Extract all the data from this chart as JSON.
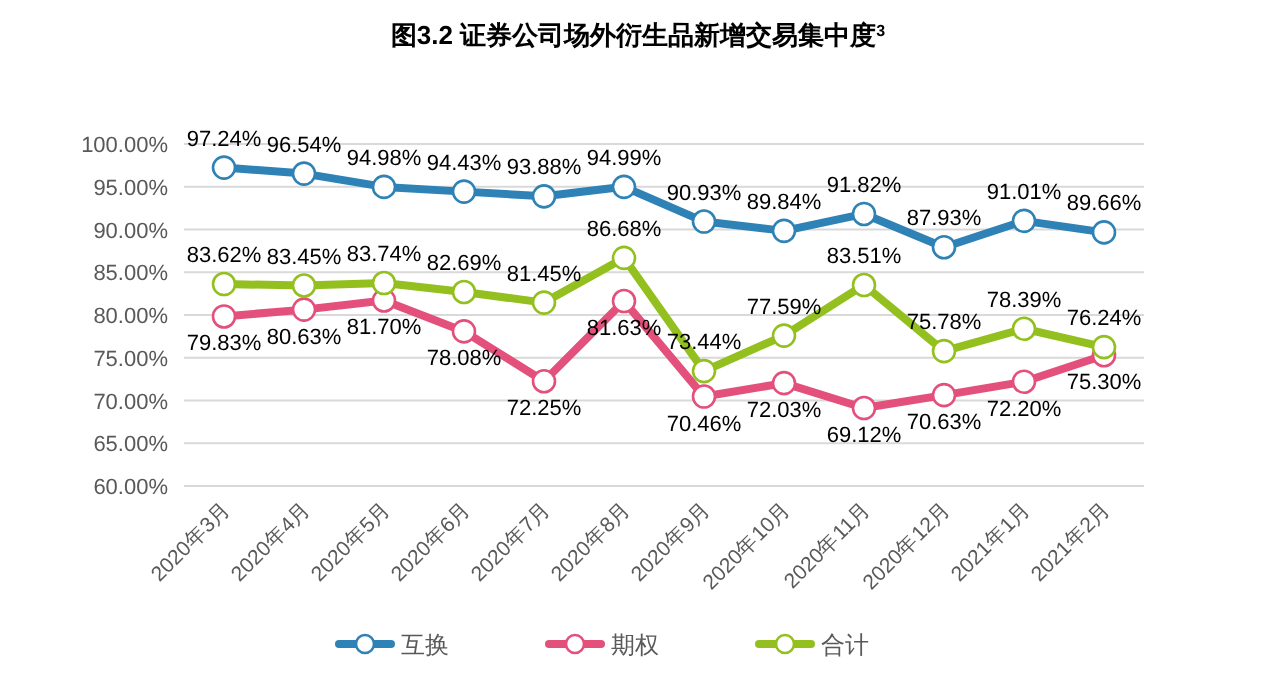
{
  "chart_data": {
    "type": "line",
    "title": "图3.2 证券公司场外衍生品新增交易集中度$^{3}$",
    "categories": [
      "2020年3月",
      "2020年4月",
      "2020年5月",
      "2020年6月",
      "2020年7月",
      "2020年8月",
      "2020年9月",
      "2020年10月",
      "2020年11月",
      "2020年12月",
      "2021年1月",
      "2021年2月"
    ],
    "series": [
      {
        "name": "互换",
        "color": "#2e82b5",
        "values": [
          97.24,
          96.54,
          94.98,
          94.43,
          93.88,
          94.99,
          90.93,
          89.84,
          91.82,
          87.93,
          91.01,
          89.66
        ],
        "value_labels": [
          "97.24%",
          "96.54%",
          "94.98%",
          "94.43%",
          "93.88%",
          "94.99%",
          "90.93%",
          "89.84%",
          "91.82%",
          "87.93%",
          "91.01%",
          "89.66%"
        ]
      },
      {
        "name": "期权",
        "color": "#e4507c",
        "values": [
          79.83,
          80.63,
          81.7,
          78.08,
          72.25,
          81.63,
          70.46,
          72.03,
          69.12,
          70.63,
          72.2,
          75.3
        ],
        "value_labels": [
          "79.83%",
          "80.63%",
          "81.70%",
          "78.08%",
          "72.25%",
          "81.63%",
          "70.46%",
          "72.03%",
          "69.12%",
          "70.63%",
          "72.20%",
          "75.30%"
        ]
      },
      {
        "name": "合计",
        "color": "#93c01f",
        "values": [
          83.62,
          83.45,
          83.74,
          82.69,
          81.45,
          86.68,
          73.44,
          77.59,
          83.51,
          75.78,
          78.39,
          76.24
        ],
        "value_labels": [
          "83.62%",
          "83.45%",
          "83.74%",
          "82.69%",
          "81.45%",
          "86.68%",
          "73.44%",
          "77.59%",
          "83.51%",
          "75.78%",
          "78.39%",
          "76.24%"
        ]
      }
    ],
    "ylim": [
      60,
      100
    ],
    "yticks": [
      {
        "value": 60,
        "label": "60.00%"
      },
      {
        "value": 65,
        "label": "65.00%"
      },
      {
        "value": 70,
        "label": "70.00%"
      },
      {
        "value": 75,
        "label": "75.00%"
      },
      {
        "value": 80,
        "label": "80.00%"
      },
      {
        "value": 85,
        "label": "85.00%"
      },
      {
        "value": 90,
        "label": "90.00%"
      },
      {
        "value": 95,
        "label": "95.00%"
      },
      {
        "value": 100,
        "label": "100.00%"
      }
    ],
    "grid": "y",
    "legend": "bottom",
    "marker": "circle",
    "line_style": "solid"
  }
}
